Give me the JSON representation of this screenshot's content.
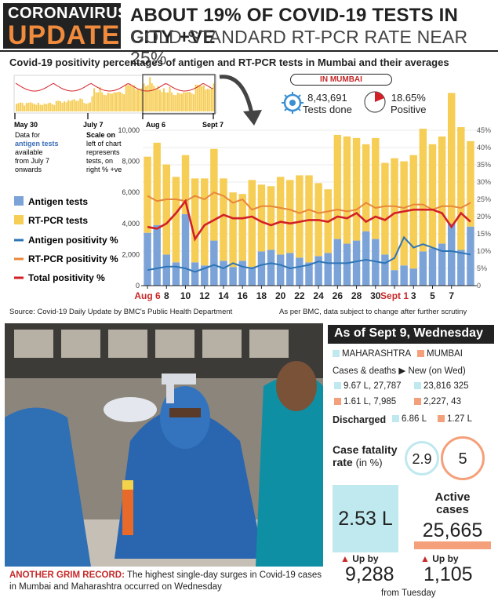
{
  "header": {
    "brand_line1": "CORONAVIRUS",
    "brand_line2": "UPDATE",
    "headline": "ABOUT 19% OF COVID-19 TESTS IN CITY +VE",
    "subhead": "GOLD STANDARD RT-PCR RATE NEAR 25%"
  },
  "chart_title": "Covid-19 positivity percentages of antigen and RT-PCR tests in Mumbai and their averages",
  "mini_chart": {
    "label_start": "May 30",
    "label_start_note": "Data for antigen tests available from July 7 onwards",
    "label_start_note_a": "Data for",
    "label_start_note_b": "antigen tests",
    "label_start_note_c": "available",
    "label_start_note_d": "from July 7",
    "label_start_note_e": "onwards",
    "label_mid": "July 7",
    "scale_note_a": "Scale on",
    "scale_note_b": "left of chart",
    "scale_note_c": "represents",
    "scale_note_d": "tests, on",
    "scale_note_e": "right % +ve",
    "zoom_start": "Aug 6",
    "zoom_end": "Sept 7"
  },
  "stats": {
    "region": "IN MUMBAI",
    "tests_done_value": "8,43,691",
    "tests_done_label": "Tests done",
    "positive_value": "18.65%",
    "positive_label": "Positive"
  },
  "legend": {
    "antigen_tests": "Antigen tests",
    "rtpcr_tests": "RT-PCR tests",
    "antigen_pct": "Antigen positivity %",
    "rtpcr_pct": "RT-PCR positivity %",
    "total_pct": "Total positivity %"
  },
  "chart_data": {
    "type": "bar",
    "title": "Covid-19 positivity percentages of antigen and RT-PCR tests in Mumbai and their averages",
    "x_tick_labels": [
      "Aug 6",
      "8",
      "10",
      "12",
      "14",
      "16",
      "18",
      "20",
      "22",
      "24",
      "26",
      "28",
      "30",
      "Sept 1",
      "3",
      "5",
      "7"
    ],
    "ylim_left": [
      0,
      10000
    ],
    "y_left_ticks": [
      "0",
      "2,000",
      "4,000",
      "6,000",
      "8,000",
      "10,000"
    ],
    "ylim_right": [
      0,
      45
    ],
    "y_right_ticks": [
      "0",
      "5%",
      "10%",
      "15%",
      "20%",
      "25%",
      "30%",
      "35%",
      "40%",
      "45%"
    ],
    "series": [
      {
        "name": "Antigen tests",
        "type": "stacked-bar",
        "color": "#7ba3d8",
        "values": [
          3400,
          3900,
          2000,
          1500,
          4600,
          1500,
          1300,
          2900,
          1600,
          1200,
          1600,
          1200,
          2200,
          2300,
          2000,
          2100,
          1800,
          1500,
          1900,
          2100,
          3000,
          2700,
          2900,
          3500,
          3000,
          2000,
          1000,
          1300,
          1100,
          2200,
          2400,
          2700,
          4000,
          2300,
          3800
        ]
      },
      {
        "name": "RT-PCR tests",
        "type": "stacked-bar",
        "color": "#f6cd55",
        "values": [
          4900,
          5300,
          5800,
          5500,
          3800,
          5400,
          5600,
          5900,
          5300,
          4800,
          4300,
          5600,
          4300,
          4100,
          5000,
          4700,
          5300,
          5600,
          4700,
          4100,
          6700,
          6900,
          6600,
          5600,
          6500,
          5900,
          7200,
          6700,
          7300,
          7900,
          6700,
          6900,
          8400,
          7900,
          5500
        ]
      },
      {
        "name": "Antigen positivity %",
        "type": "line",
        "color": "#2e75b6",
        "values": [
          4.5,
          5,
          5.5,
          5.5,
          5,
          4,
          5,
          6,
          5,
          6.5,
          5.5,
          5,
          6,
          6.5,
          6,
          5,
          5.5,
          6,
          7,
          6.5,
          6.5,
          6.5,
          7,
          7.5,
          7,
          6.5,
          8,
          14,
          11,
          12,
          11,
          10,
          10,
          9.5,
          9
        ]
      },
      {
        "name": "RT-PCR positivity %",
        "type": "line",
        "color": "#e8873a",
        "values": [
          26,
          24.5,
          25,
          25,
          24.5,
          26,
          25,
          27,
          26,
          24,
          25,
          22,
          23,
          23,
          22.5,
          22,
          21,
          22,
          21,
          21.5,
          22,
          21.5,
          22,
          24,
          22.5,
          23,
          23,
          22.5,
          23.5,
          23.5,
          22,
          23,
          23,
          22.5,
          24
        ]
      },
      {
        "name": "Total positivity %",
        "type": "line",
        "color": "#d32027",
        "values": [
          17,
          16.5,
          18,
          21,
          24.5,
          13.5,
          17.5,
          19,
          20.5,
          19.5,
          19.5,
          20,
          18.5,
          17.5,
          18.5,
          18,
          18.5,
          19,
          19,
          18.5,
          20,
          19.5,
          21,
          18.5,
          20,
          19,
          21,
          21.5,
          22,
          22,
          22,
          21,
          17,
          21,
          18.5
        ]
      }
    ]
  },
  "source": "Source: Covid-19 Daily Update by BMC's Public Health Department",
  "note": "As per BMC, data subject to change after further scrutiny",
  "caption": {
    "label": "ANOTHER GRIM RECORD:",
    "text": "The highest single-day surges in Covid-19 cases in Mumbai and Maharashtra occurred on Wednesday"
  },
  "panel": {
    "title": "As of Sept 9, Wednesday",
    "legend_mh": "MAHARASHTRA",
    "legend_mum": "MUMBAI",
    "cases_label": "Cases & deaths",
    "new_label": "New (on Wed)",
    "mh_cases": "9.67 L, 27,787",
    "mh_new": "23,816 325",
    "mum_cases": "1.61 L, 7,985",
    "mum_new": "2,227, 43",
    "discharged_label": "Discharged",
    "mh_discharged": "6.86 L",
    "mum_discharged": "1.27 L",
    "cfr_label_a": "Case fatality",
    "cfr_label_b": "rate",
    "cfr_label_c": "(in %)",
    "cfr_mh": "2.9",
    "cfr_mum": "5",
    "active_mh": "2.53 L",
    "active_title_a": "Active",
    "active_title_b": "cases",
    "active_mum": "25,665",
    "up_by": "Up by",
    "up_mh": "9,288",
    "up_mum": "1,105",
    "from_label": "from Tuesday"
  },
  "colors": {
    "maharashtra": "#bfe8ef",
    "mumbai": "#f4a07a",
    "accent_red": "#c62828"
  }
}
